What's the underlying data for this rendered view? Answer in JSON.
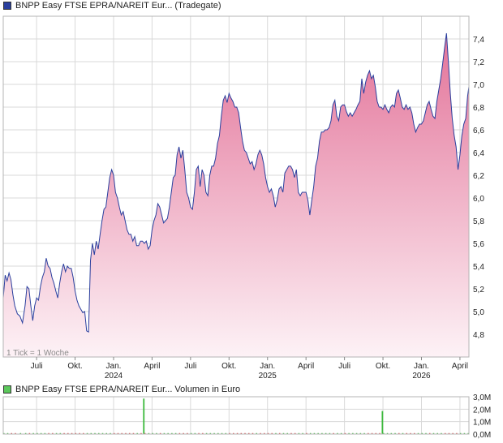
{
  "price_legend": {
    "label": "BNPP Easy FTSE EPRA/NAREIT Eur... (Tradegate)",
    "color": "#2a3f9e"
  },
  "volume_legend": {
    "label": "BNPP Easy FTSE EPRA/NAREIT Eur... Volumen in Euro",
    "color": "#5cc85c"
  },
  "note": "1 Tick = 1 Woche",
  "colors": {
    "line": "#2a3f9e",
    "fill_top": "#e37399",
    "fill_bottom": "#fdf2f6",
    "grid": "#d9d9d9",
    "volume_up": "#3cb93c",
    "volume_down": "#d94444"
  },
  "chart_data": [
    {
      "type": "area",
      "title": "BNPP Easy FTSE EPRA/NAREIT Eur... (Tradegate)",
      "x_ticks": [
        {
          "t": 2.6,
          "label": "Juli"
        },
        {
          "t": 5.6,
          "label": "Okt."
        },
        {
          "t": 8.6,
          "label": "Jan.",
          "year": "2024"
        },
        {
          "t": 11.6,
          "label": "April"
        },
        {
          "t": 14.6,
          "label": "Juli"
        },
        {
          "t": 17.6,
          "label": "Okt."
        },
        {
          "t": 20.6,
          "label": "Jan.",
          "year": "2025"
        },
        {
          "t": 23.6,
          "label": "April"
        },
        {
          "t": 26.6,
          "label": "Juli"
        },
        {
          "t": 29.6,
          "label": "Okt."
        },
        {
          "t": 32.6,
          "label": "Jan.",
          "year": "2026"
        },
        {
          "t": 35.6,
          "label": "April"
        }
      ],
      "y_ticks": [
        4.8,
        5.0,
        5.2,
        5.4,
        5.6,
        5.8,
        6.0,
        6.2,
        6.4,
        6.6,
        6.8,
        7.0,
        7.2,
        7.4
      ],
      "ylim": [
        4.6,
        7.6
      ],
      "xlim": [
        0,
        36.3
      ],
      "points": [
        [
          0.0,
          5.12
        ],
        [
          0.15,
          5.32
        ],
        [
          0.3,
          5.27
        ],
        [
          0.45,
          5.34
        ],
        [
          0.6,
          5.28
        ],
        [
          0.75,
          5.15
        ],
        [
          0.9,
          5.05
        ],
        [
          1.1,
          4.98
        ],
        [
          1.3,
          4.96
        ],
        [
          1.5,
          4.9
        ],
        [
          1.7,
          5.05
        ],
        [
          1.85,
          5.22
        ],
        [
          2.0,
          5.2
        ],
        [
          2.15,
          5.05
        ],
        [
          2.3,
          4.92
        ],
        [
          2.45,
          5.05
        ],
        [
          2.6,
          5.12
        ],
        [
          2.75,
          5.1
        ],
        [
          2.9,
          5.22
        ],
        [
          3.05,
          5.3
        ],
        [
          3.2,
          5.35
        ],
        [
          3.35,
          5.47
        ],
        [
          3.5,
          5.4
        ],
        [
          3.65,
          5.38
        ],
        [
          3.8,
          5.3
        ],
        [
          3.95,
          5.25
        ],
        [
          4.1,
          5.18
        ],
        [
          4.25,
          5.12
        ],
        [
          4.4,
          5.25
        ],
        [
          4.55,
          5.35
        ],
        [
          4.7,
          5.42
        ],
        [
          4.85,
          5.35
        ],
        [
          5.0,
          5.4
        ],
        [
          5.15,
          5.38
        ],
        [
          5.3,
          5.38
        ],
        [
          5.45,
          5.3
        ],
        [
          5.6,
          5.18
        ],
        [
          5.75,
          5.1
        ],
        [
          5.9,
          5.05
        ],
        [
          6.05,
          5.02
        ],
        [
          6.2,
          4.99
        ],
        [
          6.35,
          5.0
        ],
        [
          6.5,
          4.83
        ],
        [
          6.65,
          4.82
        ],
        [
          6.8,
          5.45
        ],
        [
          6.95,
          5.6
        ],
        [
          7.1,
          5.5
        ],
        [
          7.25,
          5.62
        ],
        [
          7.4,
          5.55
        ],
        [
          7.55,
          5.68
        ],
        [
          7.7,
          5.8
        ],
        [
          7.85,
          5.9
        ],
        [
          8.0,
          5.92
        ],
        [
          8.15,
          6.05
        ],
        [
          8.3,
          6.18
        ],
        [
          8.45,
          6.25
        ],
        [
          8.6,
          6.2
        ],
        [
          8.75,
          6.05
        ],
        [
          8.9,
          6.0
        ],
        [
          9.05,
          5.92
        ],
        [
          9.2,
          5.85
        ],
        [
          9.35,
          5.88
        ],
        [
          9.5,
          5.8
        ],
        [
          9.65,
          5.72
        ],
        [
          9.8,
          5.68
        ],
        [
          9.95,
          5.68
        ],
        [
          10.1,
          5.62
        ],
        [
          10.25,
          5.66
        ],
        [
          10.4,
          5.58
        ],
        [
          10.55,
          5.58
        ],
        [
          10.7,
          5.62
        ],
        [
          10.85,
          5.62
        ],
        [
          11.0,
          5.6
        ],
        [
          11.15,
          5.62
        ],
        [
          11.3,
          5.55
        ],
        [
          11.45,
          5.58
        ],
        [
          11.6,
          5.72
        ],
        [
          11.75,
          5.8
        ],
        [
          11.9,
          5.85
        ],
        [
          12.05,
          5.95
        ],
        [
          12.2,
          5.92
        ],
        [
          12.35,
          5.85
        ],
        [
          12.5,
          5.78
        ],
        [
          12.65,
          5.8
        ],
        [
          12.8,
          5.82
        ],
        [
          12.95,
          5.92
        ],
        [
          13.1,
          6.05
        ],
        [
          13.25,
          6.18
        ],
        [
          13.4,
          6.2
        ],
        [
          13.55,
          6.38
        ],
        [
          13.7,
          6.45
        ],
        [
          13.85,
          6.35
        ],
        [
          14.0,
          6.42
        ],
        [
          14.15,
          6.25
        ],
        [
          14.3,
          6.05
        ],
        [
          14.45,
          6.0
        ],
        [
          14.6,
          5.92
        ],
        [
          14.75,
          5.9
        ],
        [
          14.9,
          6.05
        ],
        [
          15.05,
          6.25
        ],
        [
          15.2,
          6.28
        ],
        [
          15.35,
          6.1
        ],
        [
          15.5,
          6.25
        ],
        [
          15.65,
          6.2
        ],
        [
          15.8,
          6.05
        ],
        [
          15.95,
          6.02
        ],
        [
          16.1,
          6.2
        ],
        [
          16.25,
          6.28
        ],
        [
          16.4,
          6.28
        ],
        [
          16.55,
          6.35
        ],
        [
          16.7,
          6.48
        ],
        [
          16.85,
          6.55
        ],
        [
          17.0,
          6.72
        ],
        [
          17.15,
          6.86
        ],
        [
          17.3,
          6.9
        ],
        [
          17.45,
          6.84
        ],
        [
          17.6,
          6.92
        ],
        [
          17.75,
          6.88
        ],
        [
          17.9,
          6.85
        ],
        [
          18.05,
          6.8
        ],
        [
          18.2,
          6.8
        ],
        [
          18.35,
          6.75
        ],
        [
          18.5,
          6.62
        ],
        [
          18.65,
          6.5
        ],
        [
          18.8,
          6.42
        ],
        [
          18.95,
          6.4
        ],
        [
          19.1,
          6.35
        ],
        [
          19.25,
          6.3
        ],
        [
          19.4,
          6.32
        ],
        [
          19.55,
          6.25
        ],
        [
          19.7,
          6.3
        ],
        [
          19.85,
          6.38
        ],
        [
          20.0,
          6.42
        ],
        [
          20.15,
          6.38
        ],
        [
          20.3,
          6.3
        ],
        [
          20.45,
          6.18
        ],
        [
          20.6,
          6.1
        ],
        [
          20.75,
          6.05
        ],
        [
          20.9,
          6.08
        ],
        [
          21.05,
          6.02
        ],
        [
          21.2,
          5.92
        ],
        [
          21.35,
          5.98
        ],
        [
          21.5,
          6.08
        ],
        [
          21.65,
          6.1
        ],
        [
          21.8,
          6.05
        ],
        [
          21.95,
          6.22
        ],
        [
          22.1,
          6.25
        ],
        [
          22.25,
          6.28
        ],
        [
          22.4,
          6.28
        ],
        [
          22.55,
          6.25
        ],
        [
          22.7,
          6.18
        ],
        [
          22.85,
          6.25
        ],
        [
          23.0,
          6.05
        ],
        [
          23.15,
          6.02
        ],
        [
          23.3,
          6.05
        ],
        [
          23.45,
          6.05
        ],
        [
          23.6,
          6.05
        ],
        [
          23.75,
          5.98
        ],
        [
          23.9,
          5.85
        ],
        [
          24.05,
          5.98
        ],
        [
          24.2,
          6.1
        ],
        [
          24.35,
          6.28
        ],
        [
          24.5,
          6.35
        ],
        [
          24.65,
          6.5
        ],
        [
          24.8,
          6.58
        ],
        [
          24.95,
          6.58
        ],
        [
          25.1,
          6.6
        ],
        [
          25.25,
          6.6
        ],
        [
          25.4,
          6.62
        ],
        [
          25.55,
          6.68
        ],
        [
          25.7,
          6.82
        ],
        [
          25.85,
          6.86
        ],
        [
          26.0,
          6.72
        ],
        [
          26.15,
          6.68
        ],
        [
          26.3,
          6.8
        ],
        [
          26.45,
          6.82
        ],
        [
          26.6,
          6.82
        ],
        [
          26.75,
          6.76
        ],
        [
          26.9,
          6.72
        ],
        [
          27.05,
          6.75
        ],
        [
          27.2,
          6.72
        ],
        [
          27.35,
          6.75
        ],
        [
          27.5,
          6.78
        ],
        [
          27.65,
          6.82
        ],
        [
          27.8,
          6.85
        ],
        [
          27.95,
          7.05
        ],
        [
          28.1,
          6.92
        ],
        [
          28.25,
          7.02
        ],
        [
          28.4,
          7.08
        ],
        [
          28.55,
          7.12
        ],
        [
          28.7,
          7.05
        ],
        [
          28.85,
          7.08
        ],
        [
          29.0,
          6.98
        ],
        [
          29.15,
          6.85
        ],
        [
          29.3,
          6.8
        ],
        [
          29.45,
          6.8
        ],
        [
          29.6,
          6.78
        ],
        [
          29.75,
          6.82
        ],
        [
          29.9,
          6.78
        ],
        [
          30.05,
          6.75
        ],
        [
          30.2,
          6.8
        ],
        [
          30.35,
          6.82
        ],
        [
          30.5,
          6.8
        ],
        [
          30.65,
          6.92
        ],
        [
          30.8,
          6.95
        ],
        [
          30.95,
          6.88
        ],
        [
          31.1,
          6.8
        ],
        [
          31.25,
          6.78
        ],
        [
          31.4,
          6.82
        ],
        [
          31.55,
          6.78
        ],
        [
          31.7,
          6.8
        ],
        [
          31.85,
          6.75
        ],
        [
          32.0,
          6.65
        ],
        [
          32.15,
          6.58
        ],
        [
          32.3,
          6.62
        ],
        [
          32.45,
          6.65
        ],
        [
          32.6,
          6.65
        ],
        [
          32.75,
          6.68
        ],
        [
          32.9,
          6.75
        ],
        [
          33.05,
          6.82
        ],
        [
          33.2,
          6.85
        ],
        [
          33.35,
          6.78
        ],
        [
          33.5,
          6.72
        ],
        [
          33.65,
          6.7
        ],
        [
          33.8,
          6.85
        ],
        [
          33.95,
          6.95
        ],
        [
          34.1,
          7.05
        ],
        [
          34.25,
          7.18
        ],
        [
          34.4,
          7.32
        ],
        [
          34.55,
          7.45
        ],
        [
          34.7,
          7.2
        ],
        [
          34.85,
          6.92
        ],
        [
          35.0,
          6.7
        ],
        [
          35.15,
          6.55
        ],
        [
          35.3,
          6.45
        ],
        [
          35.45,
          6.25
        ],
        [
          35.6,
          6.38
        ],
        [
          35.75,
          6.55
        ],
        [
          35.9,
          6.65
        ],
        [
          36.05,
          6.7
        ],
        [
          36.2,
          6.9
        ],
        [
          36.3,
          6.98
        ]
      ]
    },
    {
      "type": "bar",
      "title": "BNPP Easy FTSE EPRA/NAREIT Eur... Volumen in Euro",
      "y_ticks": [
        {
          "value": 0,
          "label": "0,0M"
        },
        {
          "value": 1,
          "label": "1,0M"
        },
        {
          "value": 2,
          "label": "2,0M"
        },
        {
          "value": 3,
          "label": "3,0M"
        }
      ],
      "ylim": [
        0,
        3
      ],
      "xlim": [
        0,
        36.3
      ],
      "spikes": [
        {
          "t": 10.9,
          "value": 2.85
        },
        {
          "t": 29.5,
          "value": 1.85
        }
      ],
      "baseline_volume": 0.08
    }
  ]
}
